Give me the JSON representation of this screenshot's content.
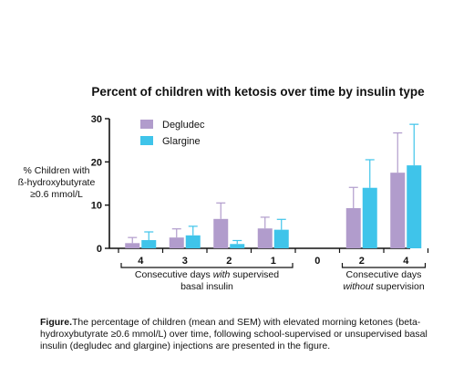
{
  "chart_data": {
    "type": "bar",
    "title": "Percent of children with ketosis over time by insulin type",
    "ylabel_lines": [
      "% Children with",
      "ß-hydroxybutyrate",
      "≥0.6 mmol/L"
    ],
    "ylim": [
      0,
      30
    ],
    "yticks": [
      "0",
      "10",
      "20",
      "30"
    ],
    "categories": [
      "4",
      "3",
      "2",
      "1",
      "0",
      "2",
      "4"
    ],
    "series": [
      {
        "name": "Degludec",
        "color": "#b19ccc",
        "values": [
          1.2,
          2.5,
          6.8,
          4.6,
          null,
          9.3,
          17.5
        ],
        "errors": [
          1.3,
          2.0,
          3.7,
          2.6,
          null,
          4.8,
          9.2
        ]
      },
      {
        "name": "Glargine",
        "color": "#3fc4ea",
        "values": [
          1.9,
          3.0,
          1.0,
          4.3,
          null,
          14.0,
          19.2
        ],
        "errors": [
          1.9,
          2.1,
          0.8,
          2.4,
          null,
          6.5,
          9.5
        ]
      }
    ],
    "groups": [
      {
        "label_parts": [
          "Consecutive days ",
          "with",
          " supervised"
        ],
        "label_line2": "basal insulin",
        "from": 0,
        "to": 3
      },
      {
        "label_parts": [
          "Consecutive days"
        ],
        "label_line2": "without supervision",
        "from": 5,
        "to": 6
      }
    ],
    "legend_placement": "top-left",
    "grid": false
  },
  "caption": {
    "lead": "Figure.",
    "text": "The percentage of children (mean and SEM) with elevated morning ketones (beta-hydroxybutyrate ≥0.6 mmol/L) over time, following school-supervised or unsupervised basal insulin (degludec and glargine) injections are presented in the figure."
  }
}
